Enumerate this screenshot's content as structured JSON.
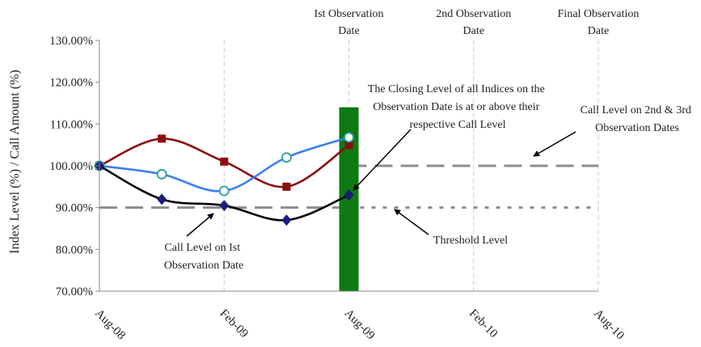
{
  "chart_data": {
    "type": "line",
    "ylabel": "Index Level (%) / Call Amount (%)",
    "ylim": [
      70,
      130
    ],
    "y_ticks": [
      "70.00%",
      "80.00%",
      "90.00%",
      "100.00%",
      "110.00%",
      "120.00%",
      "130.00%"
    ],
    "x_ticks": [
      "Aug-08",
      "Feb-09",
      "Aug-09",
      "Feb-10",
      "Aug-10"
    ],
    "x_range_months": [
      0,
      24
    ],
    "series": [
      {
        "name": "",
        "color": "#8b0f12",
        "marker": "square",
        "x": [
          0,
          3,
          6,
          9,
          12
        ],
        "values": [
          100,
          106.5,
          101,
          95,
          105
        ]
      },
      {
        "name": "",
        "color": "#3d7ef0",
        "marker": "circle-open",
        "x": [
          0,
          3,
          6,
          9,
          12
        ],
        "values": [
          100,
          98,
          94,
          102,
          106.8
        ]
      },
      {
        "name": "",
        "color": "#000000",
        "marker": "diamond",
        "x": [
          0,
          3,
          6,
          9,
          12
        ],
        "values": [
          100,
          92,
          90.5,
          87,
          93
        ]
      }
    ],
    "observation_bar": {
      "x": 12,
      "value": 114,
      "color": "#0e7a12"
    },
    "reference_lines": [
      {
        "y": 90,
        "x_from": 0,
        "x_to": 12,
        "style": "dashed"
      },
      {
        "y": 90,
        "x_from": 12,
        "x_to": 24,
        "style": "dotted"
      },
      {
        "y": 100,
        "x_from": 12,
        "x_to": 24,
        "style": "dashed"
      }
    ],
    "observation_labels": [
      {
        "x": 12,
        "lines": [
          "Ist Observation",
          "Date"
        ]
      },
      {
        "x": 18,
        "lines": [
          "2nd Observation",
          "Date"
        ]
      },
      {
        "x": 24,
        "lines": [
          "Final Observation",
          "Date"
        ]
      }
    ],
    "annotations": {
      "closing_level": [
        "The Closing Level of all Indices on the",
        "Observation Date is at or above their",
        "respective Call Level"
      ],
      "call_level_2nd_3rd": [
        "Call Level on 2nd & 3rd",
        "Observation Dates"
      ],
      "call_level_1st": [
        "Call Level on Ist",
        "Observation Date"
      ],
      "threshold": [
        "Threshold Level"
      ]
    }
  }
}
